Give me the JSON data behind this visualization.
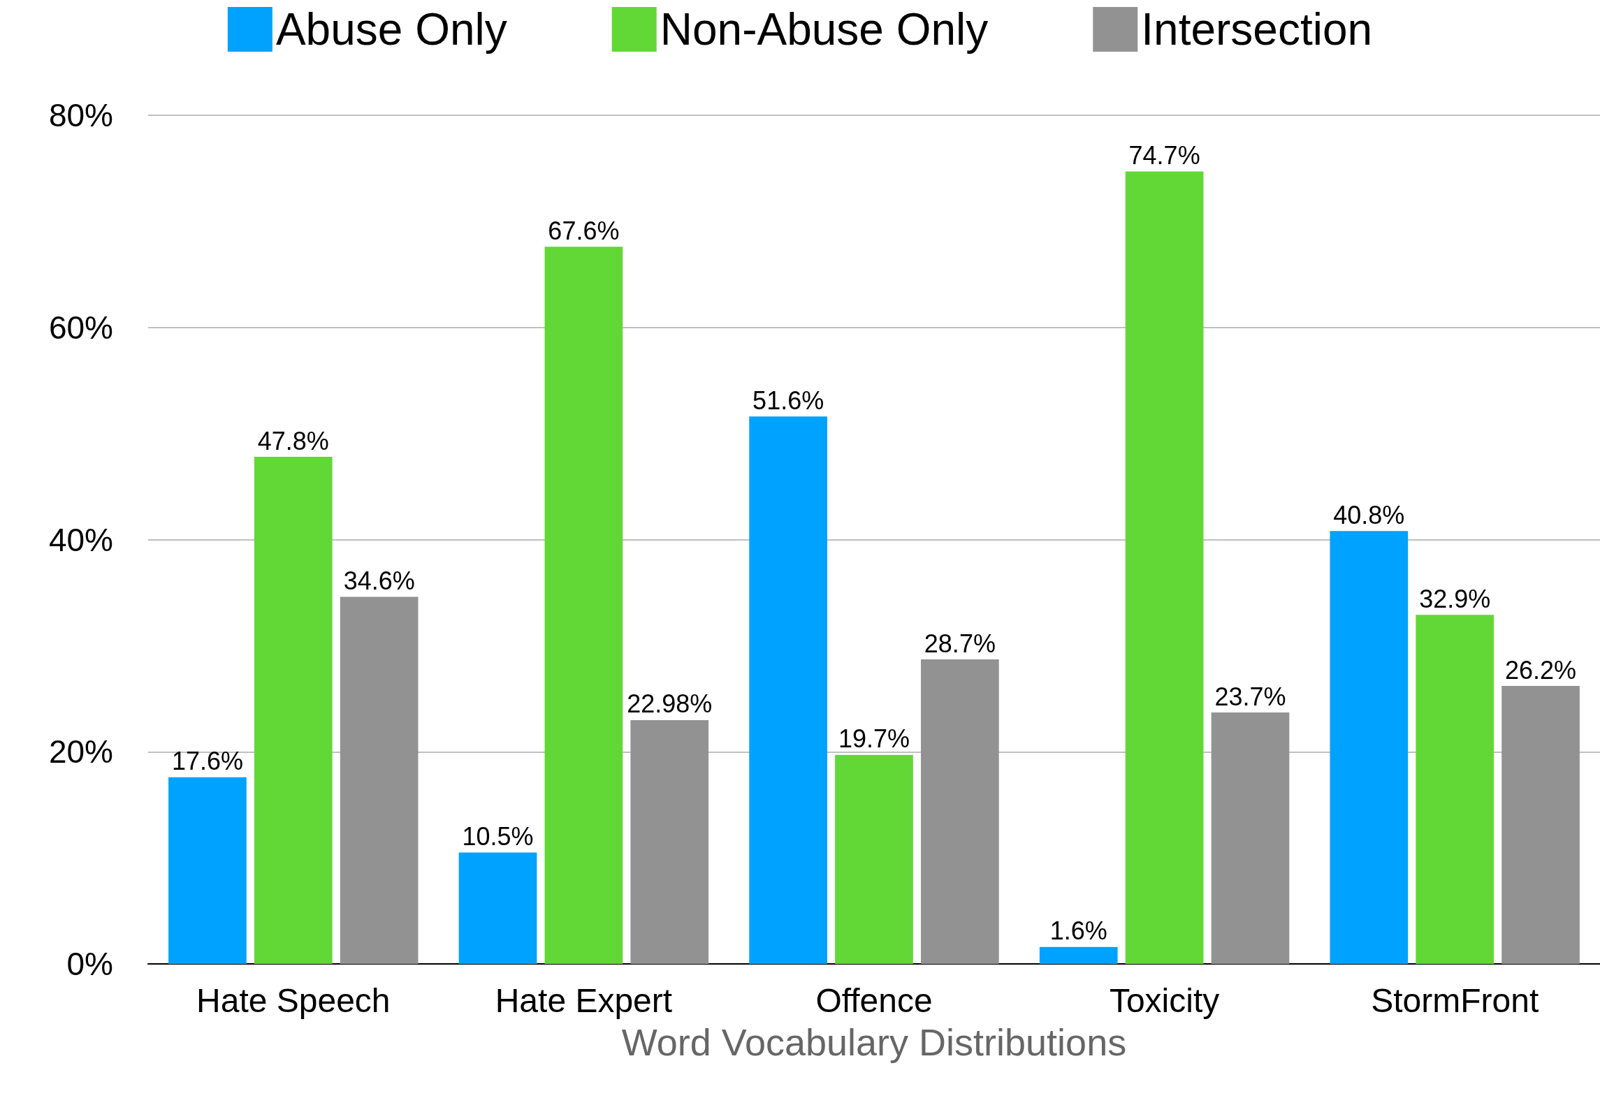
{
  "chart_data": {
    "type": "bar",
    "xlabel": "Word Vocabulary Distributions",
    "categories": [
      "Hate Speech",
      "Hate Expert",
      "Offence",
      "Toxicity",
      "StormFront"
    ],
    "series": [
      {
        "name": "Abuse Only",
        "color": "#00a2ff",
        "values": [
          17.6,
          10.5,
          51.6,
          1.6,
          40.8
        ],
        "value_labels": [
          "17.6%",
          "10.5%",
          "51.6%",
          "1.6%",
          "40.8%"
        ]
      },
      {
        "name": "Non-Abuse Only",
        "color": "#61d836",
        "values": [
          47.8,
          67.6,
          19.7,
          74.7,
          32.9
        ],
        "value_labels": [
          "47.8%",
          "67.6%",
          "19.7%",
          "74.7%",
          "32.9%"
        ]
      },
      {
        "name": "Intersection",
        "color": "#929292",
        "values": [
          34.6,
          22.98,
          28.7,
          23.7,
          26.2
        ],
        "value_labels": [
          "34.6%",
          "22.98%",
          "28.7%",
          "23.7%",
          "26.2%"
        ]
      }
    ],
    "ylim": [
      0,
      80
    ],
    "yticks": [
      {
        "value": 0,
        "label": "0%"
      },
      {
        "value": 20,
        "label": "20%"
      },
      {
        "value": 40,
        "label": "40%"
      },
      {
        "value": 60,
        "label": "60%"
      },
      {
        "value": 80,
        "label": "80%"
      }
    ],
    "grid": "y",
    "legend": "top"
  }
}
